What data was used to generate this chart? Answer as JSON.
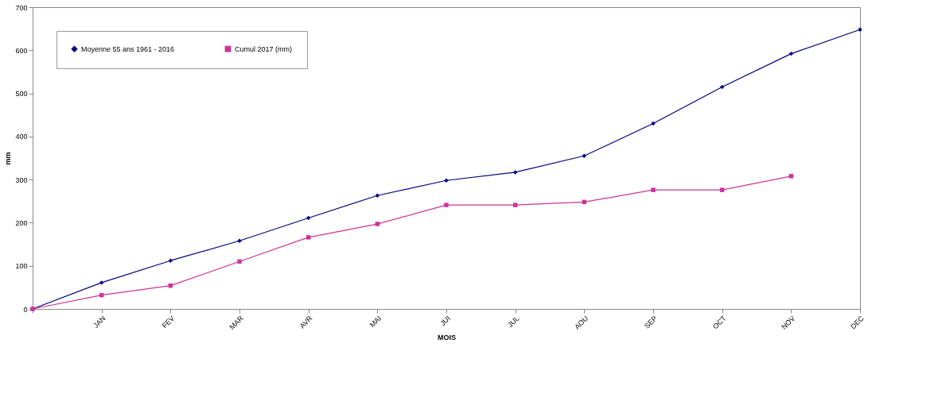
{
  "chart_data": {
    "type": "line",
    "xlabel": "MOIS",
    "ylabel": "mm",
    "categories": [
      null,
      "JAN",
      "FEV",
      "MAR",
      "AVR",
      "MAI",
      "JUI",
      "JUL",
      "AOU",
      "SEP",
      "OCT",
      "NOV",
      "DEC"
    ],
    "series": [
      {
        "name": "Moyenne 55 ans 1961 - 2016",
        "color": "#000080",
        "marker": "diamond",
        "values": [
          0,
          61,
          112,
          158,
          211,
          263,
          298,
          317,
          355,
          430,
          515,
          592,
          648
        ]
      },
      {
        "name": "Cumul 2017 (mm)",
        "color": "#cc3399",
        "marker": "square",
        "values": [
          0,
          32,
          54,
          110,
          166,
          197,
          241,
          241,
          248,
          276,
          276,
          308,
          null
        ]
      }
    ],
    "ylim": [
      0,
      700
    ],
    "yticks": [
      0,
      100,
      200,
      300,
      400,
      500,
      600,
      700
    ],
    "grid": false,
    "legend": "top left",
    "line_style": "solid"
  }
}
